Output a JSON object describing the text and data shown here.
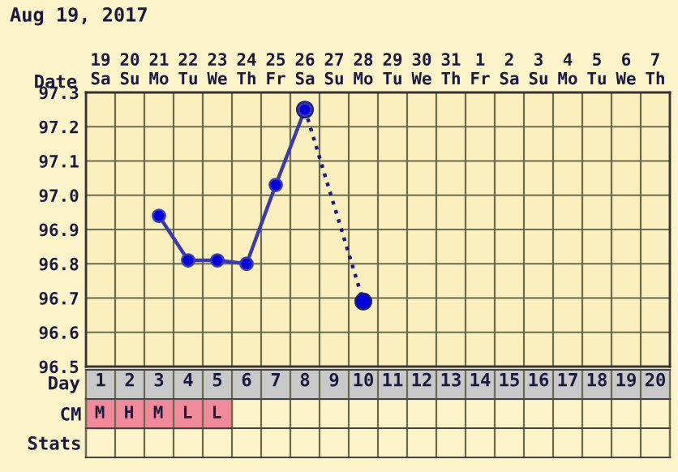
{
  "chart_data": [
    {
      "type": "line",
      "title": "Aug 19, 2017",
      "xlabel": "Date",
      "categories": [
        "19\nSa",
        "20\nSu",
        "21\nMo",
        "22\nTu",
        "23\nWe",
        "24\nTh",
        "25\nFr",
        "26\nSa",
        "27\nSu",
        "28\nMo",
        "29\nTu",
        "30\nWe",
        "31\nTh",
        "1\nFr",
        "2\nSa",
        "3\nSu",
        "4\nMo",
        "5\nTu",
        "6\nWe",
        "7\nTh"
      ],
      "series": [
        {
          "color": "#3b3bb0",
          "marker": "circle",
          "line_style": "solid",
          "values": [
            null,
            null,
            96.94,
            96.81,
            96.81,
            96.8,
            97.03,
            97.25,
            null,
            null,
            null,
            null,
            null,
            null,
            null,
            null,
            null,
            null,
            null,
            null
          ]
        },
        {
          "color": "#1a1a80",
          "marker": "circle",
          "line_style": "dotted",
          "values": [
            null,
            null,
            null,
            null,
            null,
            null,
            null,
            97.25,
            null,
            96.69,
            null,
            null,
            null,
            null,
            null,
            null,
            null,
            null,
            null,
            null
          ]
        }
      ],
      "ylim": [
        96.5,
        97.3
      ],
      "yticks": [
        {
          "value": 96.5,
          "label": "96.5"
        },
        {
          "value": 96.6,
          "label": "96.6"
        },
        {
          "value": 96.7,
          "label": "96.7"
        },
        {
          "value": 96.8,
          "label": "96.8"
        },
        {
          "value": 96.9,
          "label": "96.9"
        },
        {
          "value": 97.0,
          "label": "97.0"
        },
        {
          "value": 97.1,
          "label": "97.1"
        },
        {
          "value": 97.2,
          "label": "97.2"
        },
        {
          "value": 97.3,
          "label": "97.3"
        }
      ],
      "grid": true
    },
    {
      "type": "heatmap",
      "xlabel": "Day",
      "categories": [
        "1",
        "2",
        "3",
        "4",
        "5",
        "6",
        "7",
        "8",
        "9",
        "10",
        "11",
        "12",
        "13",
        "14",
        "15",
        "16",
        "17",
        "18",
        "19",
        "20"
      ],
      "y_categories": [
        "CM",
        "Stats"
      ],
      "cells": [
        [
          null,
          null,
          null,
          null,
          null,
          null,
          null,
          null,
          null,
          null,
          null,
          null,
          null,
          null,
          null,
          null,
          null,
          null,
          null,
          null
        ],
        [
          null,
          null,
          null,
          null,
          null,
          null,
          null,
          null,
          null,
          null,
          null,
          null,
          null,
          null,
          null,
          null,
          null,
          null,
          null,
          null
        ]
      ],
      "cell_labels": [
        [
          "M",
          "H",
          "M",
          "L",
          "L",
          null,
          null,
          null,
          null,
          null,
          null,
          null,
          null,
          null,
          null,
          null,
          null,
          null,
          null,
          null
        ],
        [
          null,
          null,
          null,
          null,
          null,
          null,
          null,
          null,
          null,
          null,
          null,
          null,
          null,
          null,
          null,
          null,
          null,
          null,
          null,
          null
        ]
      ],
      "color": "#f08a9a"
    }
  ]
}
